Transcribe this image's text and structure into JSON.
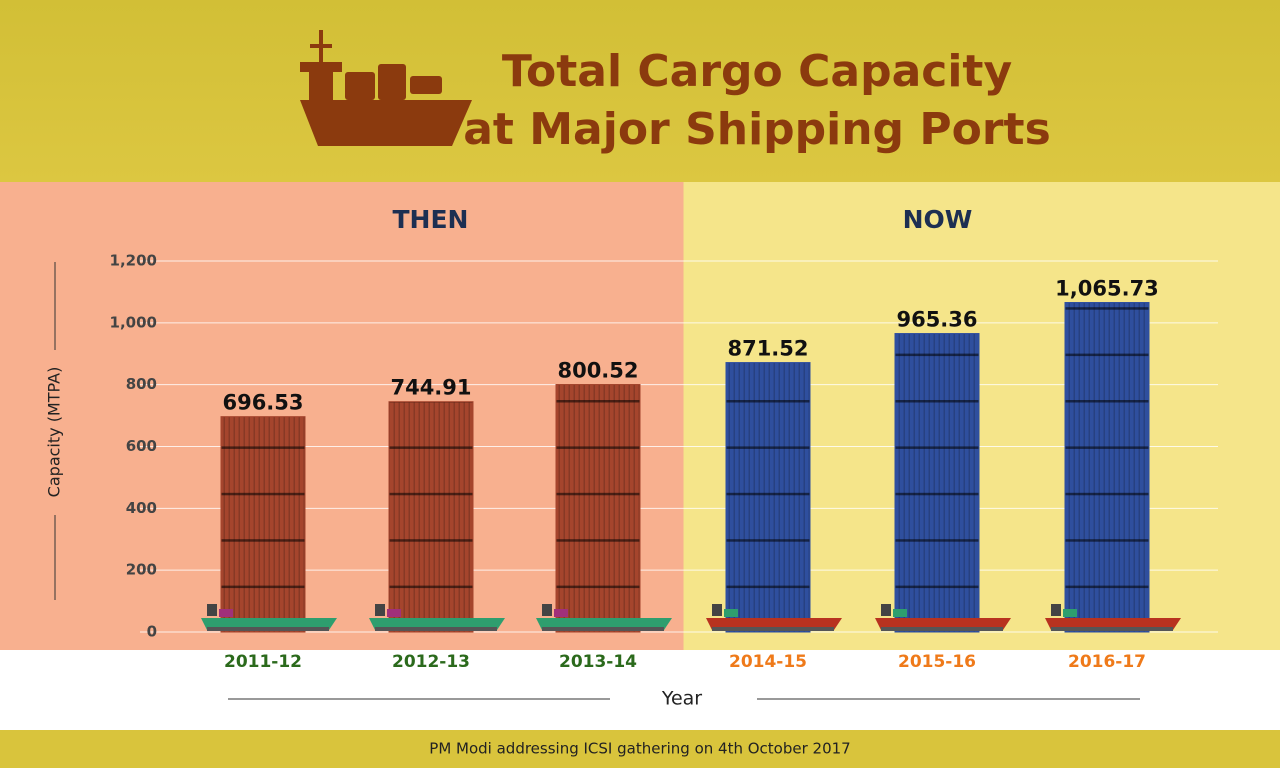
{
  "chart_data": {
    "type": "bar",
    "title": [
      "Total Cargo Capacity",
      "at Major Shipping Ports"
    ],
    "y_label": "Capacity (MTPA)",
    "x_label": "Year",
    "categories": [
      "2011-12",
      "2012-13",
      "2013-14",
      "2014-15",
      "2015-16",
      "2016-17"
    ],
    "series": [
      {
        "name": "THEN",
        "color": "#a5452d",
        "label_color": "#2b6a1c",
        "background": "#f8b08f",
        "values": [
          696.53,
          744.91,
          800.52,
          null,
          null,
          null
        ],
        "value_labels": [
          "696.53",
          "744.91",
          "800.52",
          null,
          null,
          null
        ]
      },
      {
        "name": "NOW",
        "color": "#2f4f9e",
        "label_color": "#ef7a1a",
        "background": "#f5e58a",
        "values": [
          null,
          null,
          null,
          871.52,
          965.36,
          1065.73
        ],
        "value_labels": [
          null,
          null,
          null,
          "871.52",
          "965.36",
          "1,065.73"
        ]
      }
    ],
    "ylim": [
      0,
      1200
    ],
    "yticks": [
      0,
      200,
      400,
      600,
      800,
      {
        "value": 1000,
        "label": "1,000"
      },
      {
        "value": 1200,
        "label": "1,200"
      }
    ],
    "grid": true,
    "footer": "PM Modi addressing ICSI gathering on 4th October 2017"
  }
}
